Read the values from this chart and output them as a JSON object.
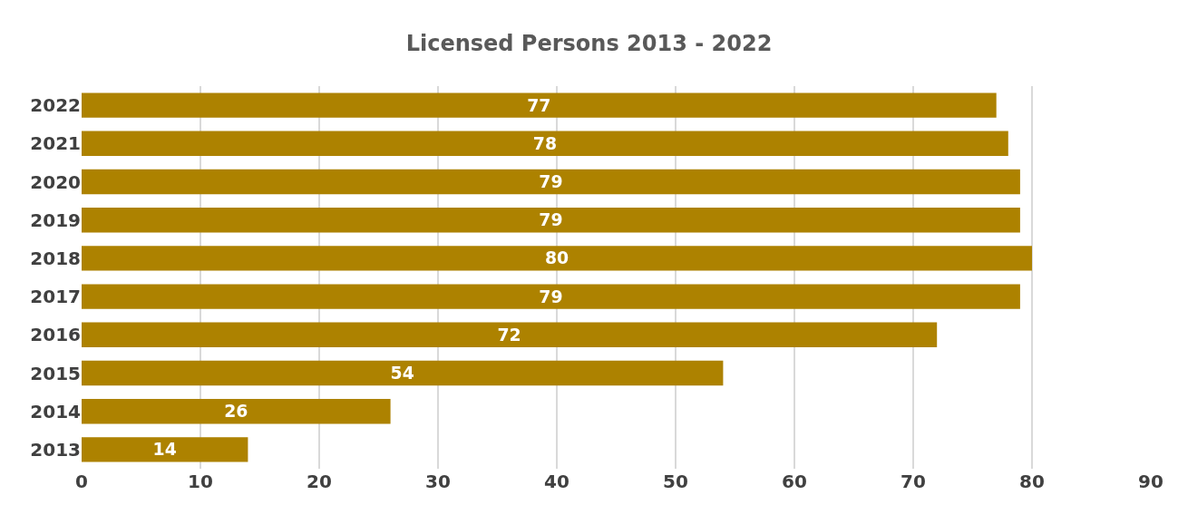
{
  "chart_data": {
    "type": "bar",
    "orientation": "horizontal",
    "title": "Licensed Persons 2013 - 2022",
    "categories": [
      "2022",
      "2021",
      "2020",
      "2019",
      "2018",
      "2017",
      "2016",
      "2015",
      "2014",
      "2013"
    ],
    "values": [
      77,
      78,
      79,
      79,
      80,
      79,
      72,
      54,
      26,
      14
    ],
    "color": "#ad8200",
    "xlim": [
      0,
      90
    ],
    "xticks": [
      0,
      10,
      20,
      30,
      40,
      50,
      60,
      70,
      80,
      90
    ],
    "grid": "x",
    "data_labels": true
  }
}
